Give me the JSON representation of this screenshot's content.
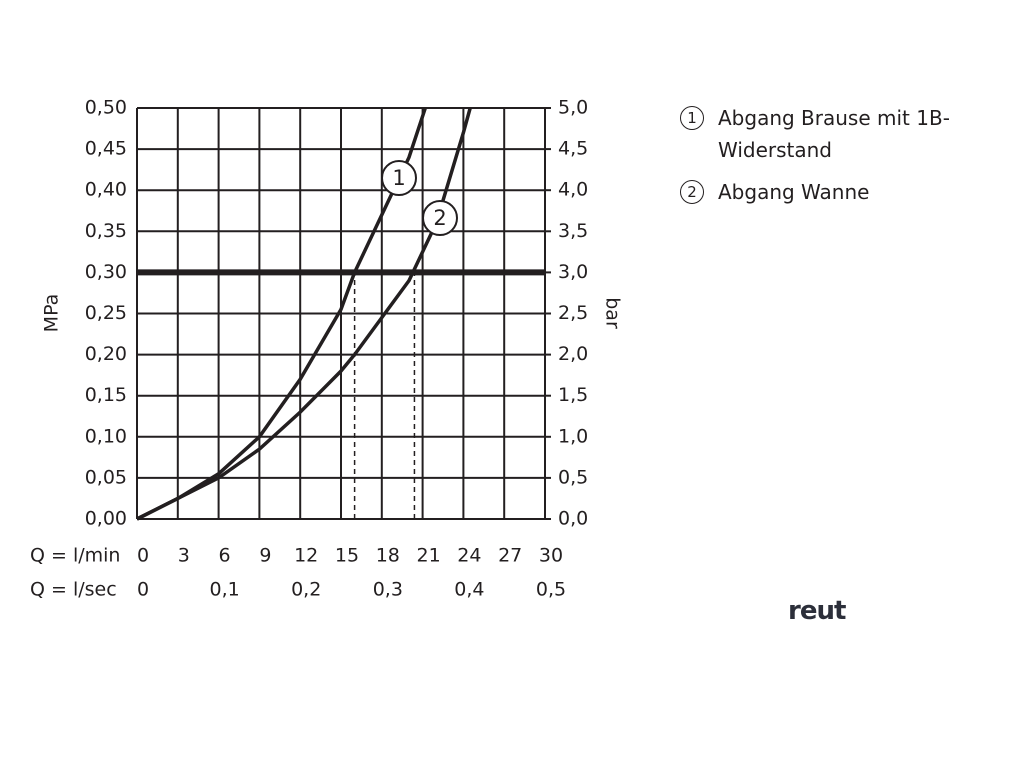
{
  "chart_data": {
    "type": "line",
    "y_label": "MPa",
    "y2_label": "bar",
    "x_label": "Q = l/min",
    "x2_label": "Q = l/sec",
    "xlim": [
      0,
      30
    ],
    "xticks": [
      0,
      3,
      6,
      9,
      12,
      15,
      18,
      21,
      24,
      27,
      30
    ],
    "x2lim": [
      0,
      0.5
    ],
    "x2ticks": [
      0,
      {
        "value": 0.1,
        "label": "0,1"
      },
      {
        "value": 0.2,
        "label": "0,2"
      },
      {
        "value": 0.3,
        "label": "0,3"
      },
      {
        "value": 0.4,
        "label": "0,4"
      },
      {
        "value": 0.5,
        "label": "0,5"
      }
    ],
    "ylim": [
      0,
      0.5
    ],
    "yticks": [
      {
        "value": 0,
        "label": "0,00"
      },
      {
        "value": 0.05,
        "label": "0,05"
      },
      {
        "value": 0.1,
        "label": "0,10"
      },
      {
        "value": 0.15,
        "label": "0,15"
      },
      {
        "value": 0.2,
        "label": "0,20"
      },
      {
        "value": 0.25,
        "label": "0,25"
      },
      {
        "value": 0.3,
        "label": "0,30"
      },
      {
        "value": 0.35,
        "label": "0,35"
      },
      {
        "value": 0.4,
        "label": "0,40"
      },
      {
        "value": 0.45,
        "label": "0,45"
      },
      {
        "value": 0.5,
        "label": "0,50"
      }
    ],
    "y2lim": [
      0,
      5
    ],
    "y2ticks": [
      {
        "value": 0,
        "label": "0,0"
      },
      {
        "value": 0.5,
        "label": "0,5"
      },
      {
        "value": 1,
        "label": "1,0"
      },
      {
        "value": 1.5,
        "label": "1,5"
      },
      {
        "value": 2,
        "label": "2,0"
      },
      {
        "value": 2.5,
        "label": "2,5"
      },
      {
        "value": 3,
        "label": "3,0"
      },
      {
        "value": 3.5,
        "label": "3,5"
      },
      {
        "value": 4,
        "label": "4,0"
      },
      {
        "value": 4.5,
        "label": "4,5"
      },
      {
        "value": 5,
        "label": "5,0"
      }
    ],
    "grid": true,
    "hline": 0.3,
    "vlines": [
      16,
      20.4
    ],
    "series": [
      {
        "name": "Abgang Brause mit 1B-Widerstand",
        "marker": "1",
        "color": "#231f20",
        "x": [
          0,
          3,
          6,
          9,
          12,
          15,
          16,
          18,
          20,
          21.2
        ],
        "values": [
          0,
          0.025,
          0.055,
          0.1,
          0.17,
          0.255,
          0.3,
          0.37,
          0.44,
          0.5
        ]
      },
      {
        "name": "Abgang Wanne",
        "marker": "2",
        "color": "#231f20",
        "x": [
          0,
          3,
          6,
          9,
          12,
          15,
          16,
          18,
          20,
          22,
          24,
          24.5
        ],
        "values": [
          0,
          0.025,
          0.05,
          0.085,
          0.13,
          0.18,
          0.2,
          0.245,
          0.29,
          0.36,
          0.47,
          0.5
        ]
      }
    ],
    "watermark": "reut"
  }
}
